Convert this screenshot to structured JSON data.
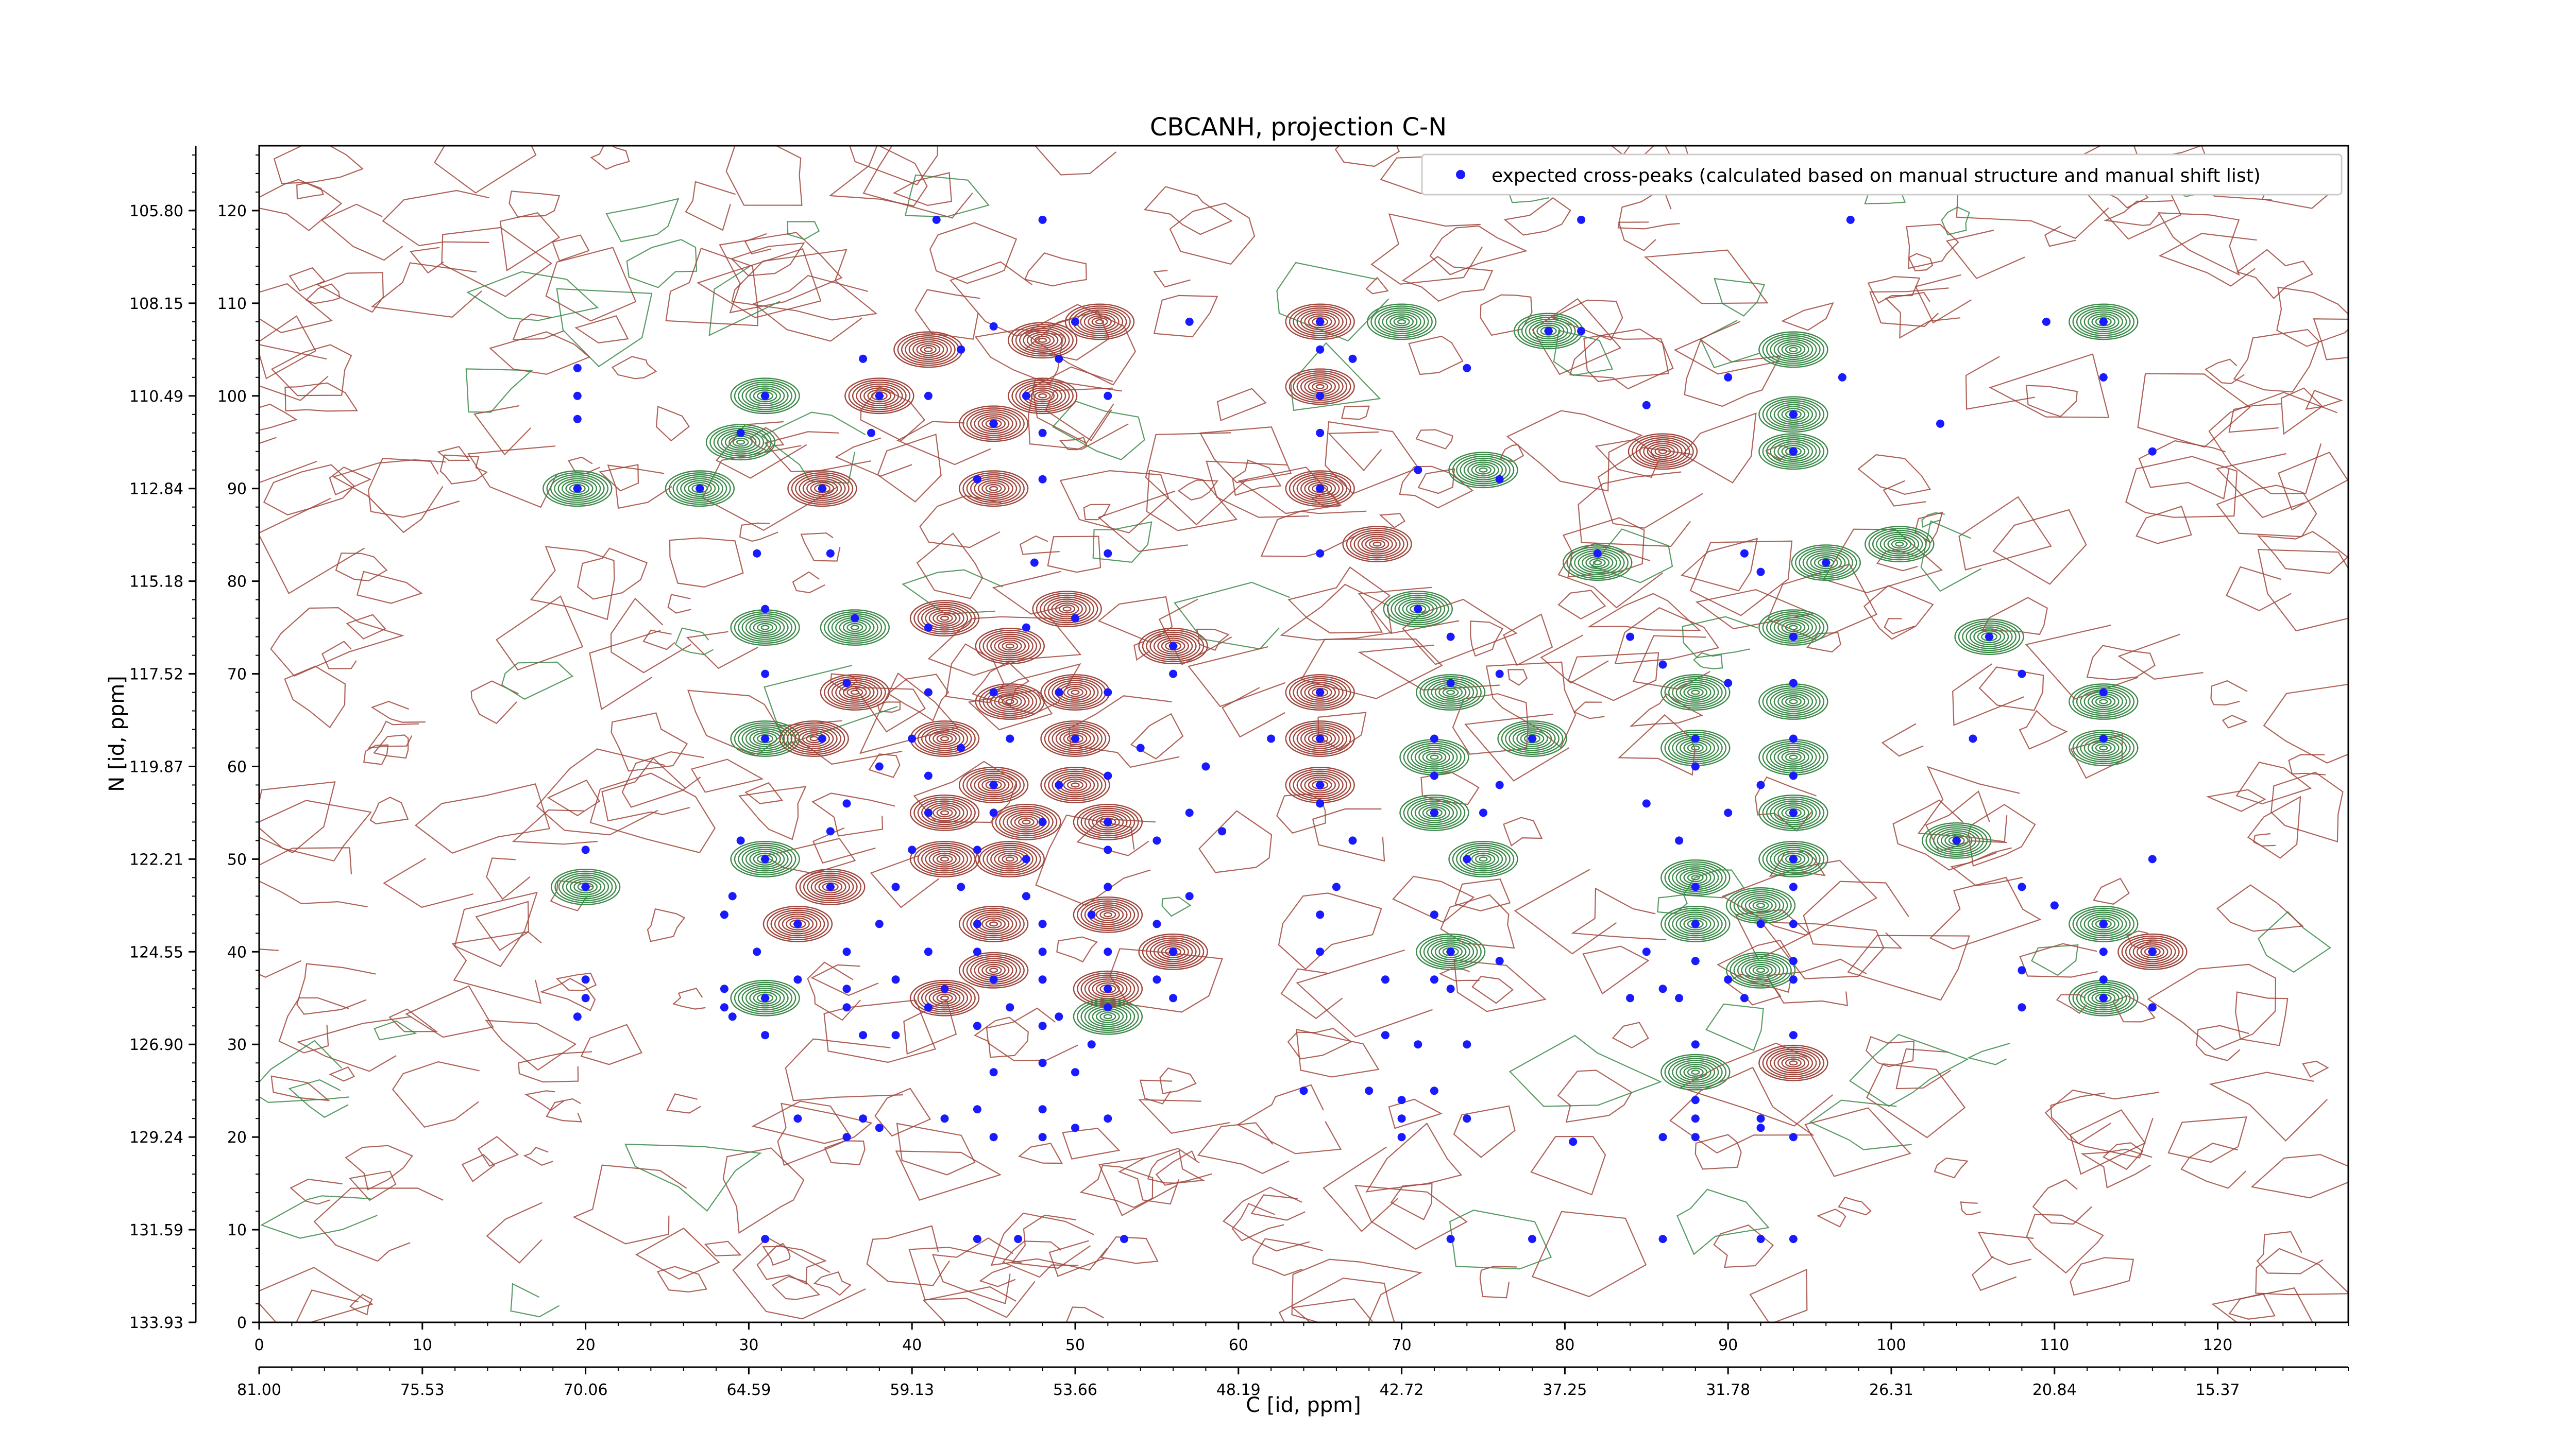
{
  "chart_data": {
    "type": "scatter",
    "title": "CBCANH, projection C-N",
    "xlabel": "C [id, ppm]",
    "ylabel": "N [id, ppm]",
    "xlim": [
      0,
      128
    ],
    "ylim": [
      0,
      127
    ],
    "x_ticks": [
      "0",
      "10",
      "20",
      "30",
      "40",
      "50",
      "60",
      "70",
      "80",
      "90",
      "100",
      "110",
      "120"
    ],
    "x_ppm_ticks": [
      "81.00",
      "75.53",
      "70.06",
      "64.59",
      "59.13",
      "53.66",
      "48.19",
      "42.72",
      "37.25",
      "31.78",
      "26.31",
      "20.84",
      "15.37"
    ],
    "y_ticks": [
      "0",
      "10",
      "20",
      "30",
      "40",
      "50",
      "60",
      "70",
      "80",
      "90",
      "100",
      "110",
      "120"
    ],
    "y_ppm_ticks": [
      "133.93",
      "131.59",
      "129.24",
      "126.90",
      "124.55",
      "122.21",
      "119.87",
      "117.52",
      "115.18",
      "112.84",
      "110.49",
      "108.15",
      "105.80"
    ],
    "legend": {
      "position": "top-right",
      "entries": [
        "expected cross-peaks (calculated based on manual structure and manual shift list)"
      ]
    },
    "colors": {
      "positive_contour": "#a0463c",
      "negative_contour": "#3c8a4a",
      "expected_peak": "#1a1aff"
    },
    "contour_peaks": [
      {
        "x": 19.5,
        "y": 90,
        "sign": "neg"
      },
      {
        "x": 31,
        "y": 100,
        "sign": "neg"
      },
      {
        "x": 29.5,
        "y": 95,
        "sign": "neg"
      },
      {
        "x": 34.5,
        "y": 90,
        "sign": "pos"
      },
      {
        "x": 27,
        "y": 90,
        "sign": "neg"
      },
      {
        "x": 38,
        "y": 100,
        "sign": "pos"
      },
      {
        "x": 41,
        "y": 105,
        "sign": "pos"
      },
      {
        "x": 45,
        "y": 97,
        "sign": "pos"
      },
      {
        "x": 48,
        "y": 106,
        "sign": "pos"
      },
      {
        "x": 51.5,
        "y": 108,
        "sign": "pos"
      },
      {
        "x": 48,
        "y": 100,
        "sign": "pos"
      },
      {
        "x": 45,
        "y": 90,
        "sign": "pos"
      },
      {
        "x": 65,
        "y": 108,
        "sign": "pos"
      },
      {
        "x": 65,
        "y": 101,
        "sign": "pos"
      },
      {
        "x": 65,
        "y": 90,
        "sign": "pos"
      },
      {
        "x": 68.5,
        "y": 84,
        "sign": "pos"
      },
      {
        "x": 70,
        "y": 108,
        "sign": "neg"
      },
      {
        "x": 79,
        "y": 107,
        "sign": "neg"
      },
      {
        "x": 94,
        "y": 105,
        "sign": "neg"
      },
      {
        "x": 94,
        "y": 98,
        "sign": "neg"
      },
      {
        "x": 94,
        "y": 94,
        "sign": "neg"
      },
      {
        "x": 86,
        "y": 94,
        "sign": "pos"
      },
      {
        "x": 113,
        "y": 108,
        "sign": "neg"
      },
      {
        "x": 96,
        "y": 82,
        "sign": "neg"
      },
      {
        "x": 100.5,
        "y": 84,
        "sign": "neg"
      },
      {
        "x": 82,
        "y": 82,
        "sign": "neg"
      },
      {
        "x": 94,
        "y": 75,
        "sign": "neg"
      },
      {
        "x": 31,
        "y": 75,
        "sign": "neg"
      },
      {
        "x": 36.5,
        "y": 75,
        "sign": "neg"
      },
      {
        "x": 42,
        "y": 76,
        "sign": "pos"
      },
      {
        "x": 46,
        "y": 73,
        "sign": "pos"
      },
      {
        "x": 49.5,
        "y": 77,
        "sign": "pos"
      },
      {
        "x": 56,
        "y": 73,
        "sign": "pos"
      },
      {
        "x": 31,
        "y": 63,
        "sign": "neg"
      },
      {
        "x": 36.5,
        "y": 68,
        "sign": "pos"
      },
      {
        "x": 34,
        "y": 63,
        "sign": "pos"
      },
      {
        "x": 42,
        "y": 63,
        "sign": "pos"
      },
      {
        "x": 46,
        "y": 67,
        "sign": "pos"
      },
      {
        "x": 50,
        "y": 68,
        "sign": "pos"
      },
      {
        "x": 50,
        "y": 63,
        "sign": "pos"
      },
      {
        "x": 45,
        "y": 58,
        "sign": "pos"
      },
      {
        "x": 50,
        "y": 58,
        "sign": "pos"
      },
      {
        "x": 42,
        "y": 55,
        "sign": "pos"
      },
      {
        "x": 47,
        "y": 54,
        "sign": "pos"
      },
      {
        "x": 52,
        "y": 54,
        "sign": "pos"
      },
      {
        "x": 46,
        "y": 50,
        "sign": "pos"
      },
      {
        "x": 42,
        "y": 50,
        "sign": "pos"
      },
      {
        "x": 31,
        "y": 50,
        "sign": "neg"
      },
      {
        "x": 20,
        "y": 47,
        "sign": "neg"
      },
      {
        "x": 35,
        "y": 47,
        "sign": "pos"
      },
      {
        "x": 33,
        "y": 43,
        "sign": "pos"
      },
      {
        "x": 45,
        "y": 43,
        "sign": "pos"
      },
      {
        "x": 52,
        "y": 44,
        "sign": "pos"
      },
      {
        "x": 56,
        "y": 40,
        "sign": "pos"
      },
      {
        "x": 45,
        "y": 38,
        "sign": "pos"
      },
      {
        "x": 52,
        "y": 36,
        "sign": "pos"
      },
      {
        "x": 42,
        "y": 35,
        "sign": "pos"
      },
      {
        "x": 31,
        "y": 35,
        "sign": "neg"
      },
      {
        "x": 52,
        "y": 33,
        "sign": "neg"
      },
      {
        "x": 65,
        "y": 68,
        "sign": "pos"
      },
      {
        "x": 65,
        "y": 63,
        "sign": "pos"
      },
      {
        "x": 65,
        "y": 58,
        "sign": "pos"
      },
      {
        "x": 73,
        "y": 68,
        "sign": "neg"
      },
      {
        "x": 72,
        "y": 61,
        "sign": "neg"
      },
      {
        "x": 78,
        "y": 63,
        "sign": "neg"
      },
      {
        "x": 72,
        "y": 55,
        "sign": "neg"
      },
      {
        "x": 75,
        "y": 50,
        "sign": "neg"
      },
      {
        "x": 73,
        "y": 40,
        "sign": "neg"
      },
      {
        "x": 88,
        "y": 68,
        "sign": "neg"
      },
      {
        "x": 94,
        "y": 67,
        "sign": "neg"
      },
      {
        "x": 94,
        "y": 61,
        "sign": "neg"
      },
      {
        "x": 88,
        "y": 62,
        "sign": "neg"
      },
      {
        "x": 94,
        "y": 55,
        "sign": "neg"
      },
      {
        "x": 94,
        "y": 50,
        "sign": "neg"
      },
      {
        "x": 88,
        "y": 48,
        "sign": "neg"
      },
      {
        "x": 92,
        "y": 45,
        "sign": "neg"
      },
      {
        "x": 88,
        "y": 43,
        "sign": "neg"
      },
      {
        "x": 92,
        "y": 38,
        "sign": "neg"
      },
      {
        "x": 113,
        "y": 67,
        "sign": "neg"
      },
      {
        "x": 113,
        "y": 62,
        "sign": "neg"
      },
      {
        "x": 113,
        "y": 43,
        "sign": "neg"
      },
      {
        "x": 113,
        "y": 35,
        "sign": "neg"
      },
      {
        "x": 116,
        "y": 40,
        "sign": "pos"
      },
      {
        "x": 104,
        "y": 52,
        "sign": "neg"
      },
      {
        "x": 106,
        "y": 74,
        "sign": "neg"
      },
      {
        "x": 94,
        "y": 28,
        "sign": "pos"
      },
      {
        "x": 88,
        "y": 27,
        "sign": "neg"
      },
      {
        "x": 71,
        "y": 77,
        "sign": "neg"
      },
      {
        "x": 75,
        "y": 92,
        "sign": "neg"
      }
    ],
    "expected_peaks": [
      [
        41.5,
        119
      ],
      [
        48,
        119
      ],
      [
        97.5,
        119
      ],
      [
        81,
        119
      ],
      [
        45,
        107.5
      ],
      [
        50,
        108
      ],
      [
        57,
        108
      ],
      [
        65,
        108
      ],
      [
        79,
        107
      ],
      [
        81,
        107
      ],
      [
        113,
        108
      ],
      [
        109.5,
        108
      ],
      [
        37,
        104
      ],
      [
        43,
        105
      ],
      [
        49,
        104
      ],
      [
        65,
        105
      ],
      [
        67,
        104
      ],
      [
        74,
        103
      ],
      [
        90,
        102
      ],
      [
        97,
        102
      ],
      [
        113,
        102
      ],
      [
        19.5,
        103
      ],
      [
        19.5,
        100
      ],
      [
        19.5,
        97.5
      ],
      [
        31,
        100
      ],
      [
        38,
        100
      ],
      [
        41,
        100
      ],
      [
        47,
        100
      ],
      [
        52,
        100
      ],
      [
        65,
        100
      ],
      [
        29.5,
        96
      ],
      [
        45,
        97
      ],
      [
        48,
        96
      ],
      [
        37.5,
        96
      ],
      [
        65,
        96
      ],
      [
        85,
        99
      ],
      [
        94,
        98
      ],
      [
        103,
        97
      ],
      [
        19.5,
        90
      ],
      [
        27,
        90
      ],
      [
        34.5,
        90
      ],
      [
        44,
        91
      ],
      [
        48,
        91
      ],
      [
        65,
        90
      ],
      [
        71,
        92
      ],
      [
        76,
        91
      ],
      [
        94,
        94
      ],
      [
        116,
        94
      ],
      [
        30.5,
        83
      ],
      [
        35,
        83
      ],
      [
        52,
        83
      ],
      [
        47.5,
        82
      ],
      [
        65,
        83
      ],
      [
        82,
        83
      ],
      [
        91,
        83
      ],
      [
        92,
        81
      ],
      [
        96,
        82
      ],
      [
        31,
        77
      ],
      [
        36.5,
        76
      ],
      [
        41,
        75
      ],
      [
        47,
        75
      ],
      [
        50,
        76
      ],
      [
        56,
        73
      ],
      [
        71,
        77
      ],
      [
        73,
        74
      ],
      [
        84,
        74
      ],
      [
        94,
        74
      ],
      [
        106,
        74
      ],
      [
        31,
        70
      ],
      [
        36,
        69
      ],
      [
        41,
        68
      ],
      [
        45,
        68
      ],
      [
        49,
        68
      ],
      [
        52,
        68
      ],
      [
        56,
        70
      ],
      [
        65,
        68
      ],
      [
        73,
        69
      ],
      [
        76,
        70
      ],
      [
        86,
        71
      ],
      [
        90,
        69
      ],
      [
        94,
        69
      ],
      [
        113,
        68
      ],
      [
        108,
        70
      ],
      [
        31,
        63
      ],
      [
        34.5,
        63
      ],
      [
        40,
        63
      ],
      [
        43,
        62
      ],
      [
        46,
        63
      ],
      [
        50,
        63
      ],
      [
        54,
        62
      ],
      [
        62,
        63
      ],
      [
        65,
        63
      ],
      [
        72,
        63
      ],
      [
        78,
        63
      ],
      [
        88,
        63
      ],
      [
        94,
        63
      ],
      [
        113,
        63
      ],
      [
        105,
        63
      ],
      [
        38,
        60
      ],
      [
        41,
        59
      ],
      [
        45,
        58
      ],
      [
        49,
        58
      ],
      [
        52,
        59
      ],
      [
        58,
        60
      ],
      [
        65,
        58
      ],
      [
        72,
        59
      ],
      [
        76,
        58
      ],
      [
        88,
        60
      ],
      [
        92,
        58
      ],
      [
        94,
        59
      ],
      [
        36,
        56
      ],
      [
        41,
        55
      ],
      [
        45,
        55
      ],
      [
        48,
        54
      ],
      [
        52,
        54
      ],
      [
        57,
        55
      ],
      [
        65,
        56
      ],
      [
        72,
        55
      ],
      [
        75,
        55
      ],
      [
        85,
        56
      ],
      [
        90,
        55
      ],
      [
        94,
        55
      ],
      [
        29.5,
        52
      ],
      [
        35,
        53
      ],
      [
        40,
        51
      ],
      [
        44,
        51
      ],
      [
        47,
        50
      ],
      [
        52,
        51
      ],
      [
        55,
        52
      ],
      [
        59,
        53
      ],
      [
        67,
        52
      ],
      [
        74,
        50
      ],
      [
        87,
        52
      ],
      [
        94,
        50
      ],
      [
        104,
        52
      ],
      [
        116,
        50
      ],
      [
        20,
        51
      ],
      [
        20,
        47
      ],
      [
        29,
        46
      ],
      [
        31,
        50
      ],
      [
        35,
        47
      ],
      [
        39,
        47
      ],
      [
        43,
        47
      ],
      [
        47,
        46
      ],
      [
        52,
        47
      ],
      [
        57,
        46
      ],
      [
        66,
        47
      ],
      [
        88,
        47
      ],
      [
        94,
        47
      ],
      [
        108,
        47
      ],
      [
        28.5,
        44
      ],
      [
        33,
        43
      ],
      [
        38,
        43
      ],
      [
        44,
        43
      ],
      [
        48,
        43
      ],
      [
        51,
        44
      ],
      [
        55,
        43
      ],
      [
        65,
        44
      ],
      [
        72,
        44
      ],
      [
        88,
        43
      ],
      [
        92,
        43
      ],
      [
        94,
        43
      ],
      [
        113,
        43
      ],
      [
        110,
        45
      ],
      [
        30.5,
        40
      ],
      [
        36,
        40
      ],
      [
        41,
        40
      ],
      [
        44,
        40
      ],
      [
        48,
        40
      ],
      [
        52,
        40
      ],
      [
        56,
        40
      ],
      [
        65,
        40
      ],
      [
        73,
        40
      ],
      [
        76,
        39
      ],
      [
        85,
        40
      ],
      [
        88,
        39
      ],
      [
        94,
        39
      ],
      [
        113,
        40
      ],
      [
        116,
        40
      ],
      [
        20,
        37
      ],
      [
        28.5,
        36
      ],
      [
        33,
        37
      ],
      [
        36,
        36
      ],
      [
        39,
        37
      ],
      [
        42,
        36
      ],
      [
        45,
        37
      ],
      [
        48,
        37
      ],
      [
        52,
        36
      ],
      [
        55,
        37
      ],
      [
        69,
        37
      ],
      [
        72,
        37
      ],
      [
        86,
        36
      ],
      [
        90,
        37
      ],
      [
        94,
        37
      ],
      [
        108,
        38
      ],
      [
        113,
        37
      ],
      [
        20,
        35
      ],
      [
        28.5,
        34
      ],
      [
        31,
        35
      ],
      [
        36,
        34
      ],
      [
        41,
        34
      ],
      [
        46,
        34
      ],
      [
        49,
        33
      ],
      [
        52,
        34
      ],
      [
        56,
        35
      ],
      [
        73,
        36
      ],
      [
        84,
        35
      ],
      [
        87,
        35
      ],
      [
        91,
        35
      ],
      [
        108,
        34
      ],
      [
        113,
        35
      ],
      [
        116,
        34
      ],
      [
        19.5,
        33
      ],
      [
        29,
        33
      ],
      [
        31,
        31
      ],
      [
        37,
        31
      ],
      [
        39,
        31
      ],
      [
        44,
        32
      ],
      [
        48,
        32
      ],
      [
        51,
        30
      ],
      [
        69,
        31
      ],
      [
        71,
        30
      ],
      [
        74,
        30
      ],
      [
        88,
        30
      ],
      [
        94,
        31
      ],
      [
        45,
        27
      ],
      [
        48,
        28
      ],
      [
        50,
        27
      ],
      [
        64,
        25
      ],
      [
        68,
        25
      ],
      [
        70,
        24
      ],
      [
        72,
        25
      ],
      [
        88,
        24
      ],
      [
        33,
        22
      ],
      [
        37,
        22
      ],
      [
        42,
        22
      ],
      [
        44,
        23
      ],
      [
        48,
        23
      ],
      [
        52,
        22
      ],
      [
        70,
        22
      ],
      [
        74,
        22
      ],
      [
        88,
        22
      ],
      [
        92,
        22
      ],
      [
        36,
        20
      ],
      [
        38,
        21
      ],
      [
        45,
        20
      ],
      [
        48,
        20
      ],
      [
        50,
        21
      ],
      [
        70,
        20
      ],
      [
        80.5,
        19.5
      ],
      [
        86,
        20
      ],
      [
        88,
        20
      ],
      [
        92,
        21
      ],
      [
        94,
        20
      ],
      [
        31,
        9
      ],
      [
        44,
        9
      ],
      [
        46.5,
        9
      ],
      [
        53,
        9
      ],
      [
        73,
        9
      ],
      [
        78,
        9
      ],
      [
        86,
        9
      ],
      [
        92,
        9
      ],
      [
        94,
        9
      ]
    ]
  }
}
